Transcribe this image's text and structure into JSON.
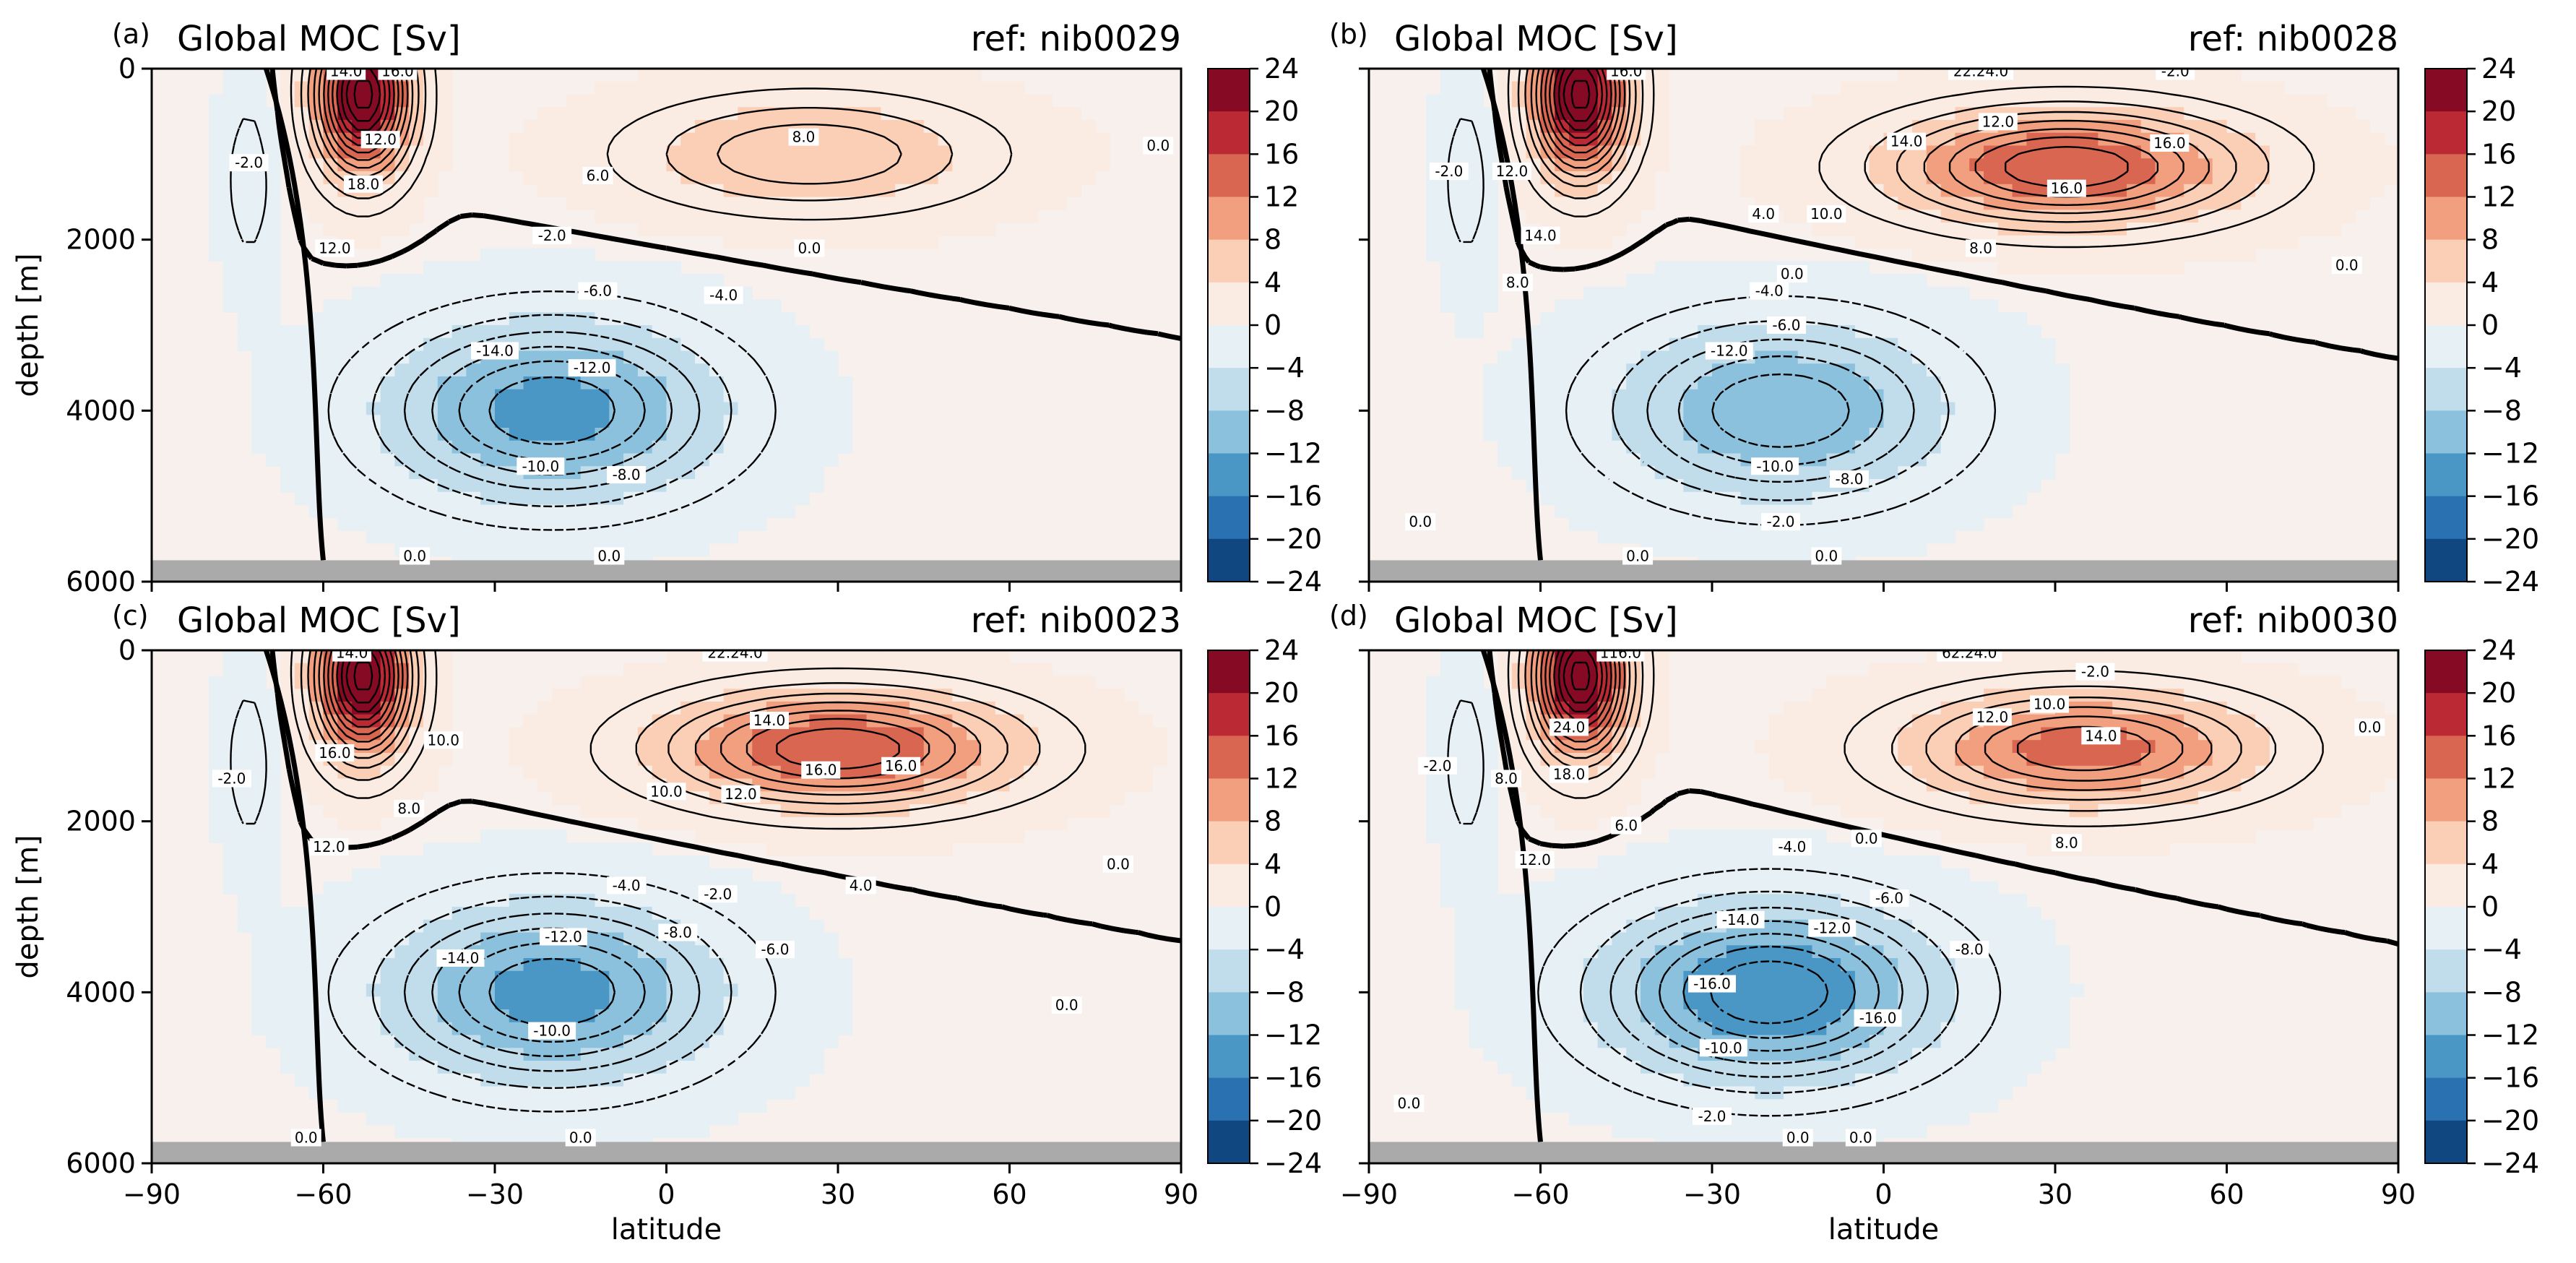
{
  "chart_data": [
    {
      "type": "contour",
      "panel_label": "(a)",
      "title": "Global MOC [Sv]",
      "ref": "ref: nib0029",
      "xlabel": "",
      "ylabel": "depth [m]",
      "xlim": [
        -90,
        90
      ],
      "ylim": [
        6000,
        0
      ],
      "xticks": [
        -90,
        -60,
        -30,
        0,
        30,
        60,
        90
      ],
      "yticks": [
        0,
        2000,
        4000,
        6000
      ],
      "show_xticklabels": false,
      "show_yticklabels": true,
      "colorbar": {
        "range": [
          -24,
          24
        ],
        "ticks": [
          24,
          20,
          16,
          12,
          8,
          4,
          0,
          -4,
          -8,
          -12,
          -16,
          -20,
          -24
        ],
        "cmap": "RdBu_r"
      },
      "features": {
        "upper_cell": {
          "center_lat": 25,
          "center_depth": 1000,
          "max": 8
        },
        "southern_cell": {
          "center_lat": -53,
          "center_depth": 300,
          "max": 24
        },
        "deep_cell": {
          "center_lat": -20,
          "center_depth": 4000,
          "min": -14
        }
      },
      "contour_labels": [
        {
          "text": "14.0",
          "lat": -56,
          "depth": 30
        },
        {
          "text": "16.0",
          "lat": -47,
          "depth": 30
        },
        {
          "text": "12.0",
          "lat": -50,
          "depth": 830
        },
        {
          "text": "18.0",
          "lat": -53,
          "depth": 1350
        },
        {
          "text": "12.0",
          "lat": -58,
          "depth": 2100
        },
        {
          "text": "-2.0",
          "lat": -73,
          "depth": 1100
        },
        {
          "text": "6.0",
          "lat": -12,
          "depth": 1250
        },
        {
          "text": "8.0",
          "lat": 24,
          "depth": 800
        },
        {
          "text": "0.0",
          "lat": 25,
          "depth": 2100
        },
        {
          "text": "-2.0",
          "lat": -20,
          "depth": 1950
        },
        {
          "text": "-6.0",
          "lat": -12,
          "depth": 2600
        },
        {
          "text": "-4.0",
          "lat": 10,
          "depth": 2650
        },
        {
          "text": "-14.0",
          "lat": -30,
          "depth": 3300
        },
        {
          "text": "-12.0",
          "lat": -13,
          "depth": 3500
        },
        {
          "text": "-10.0",
          "lat": -22,
          "depth": 4650
        },
        {
          "text": "-8.0",
          "lat": -7,
          "depth": 4750
        },
        {
          "text": "0.0",
          "lat": -44,
          "depth": 5700
        },
        {
          "text": "0.0",
          "lat": -10,
          "depth": 5700
        },
        {
          "text": "0.0",
          "lat": 86,
          "depth": 900
        }
      ]
    },
    {
      "type": "contour",
      "panel_label": "(b)",
      "title": "Global MOC [Sv]",
      "ref": "ref: nib0028",
      "xlabel": "",
      "ylabel": "",
      "xlim": [
        -90,
        90
      ],
      "ylim": [
        6000,
        0
      ],
      "xticks": [
        -90,
        -60,
        -30,
        0,
        30,
        60,
        90
      ],
      "yticks": [
        0,
        2000,
        4000,
        6000
      ],
      "show_xticklabels": false,
      "show_yticklabels": false,
      "colorbar": {
        "range": [
          -24,
          24
        ],
        "ticks": [
          24,
          20,
          16,
          12,
          8,
          4,
          0,
          -4,
          -8,
          -12,
          -16,
          -20,
          -24
        ],
        "cmap": "RdBu_r"
      },
      "features": {
        "upper_cell": {
          "center_lat": 32,
          "center_depth": 1150,
          "max": 16
        },
        "southern_cell": {
          "center_lat": -53,
          "center_depth": 300,
          "max": 24
        },
        "deep_cell": {
          "center_lat": -18,
          "center_depth": 4000,
          "min": -12
        }
      },
      "contour_labels": [
        {
          "text": "16.0",
          "lat": -45,
          "depth": 30
        },
        {
          "text": "22.24.0",
          "lat": 17,
          "depth": 30
        },
        {
          "text": "-2.0",
          "lat": 51,
          "depth": 30
        },
        {
          "text": "12.0",
          "lat": -65,
          "depth": 1200
        },
        {
          "text": "14.0",
          "lat": -60,
          "depth": 1950
        },
        {
          "text": "8.0",
          "lat": -64,
          "depth": 2500
        },
        {
          "text": "-2.0",
          "lat": -76,
          "depth": 1200
        },
        {
          "text": "12.0",
          "lat": 20,
          "depth": 620
        },
        {
          "text": "14.0",
          "lat": 4,
          "depth": 850
        },
        {
          "text": "16.0",
          "lat": 32,
          "depth": 1400
        },
        {
          "text": "16.0",
          "lat": 50,
          "depth": 870
        },
        {
          "text": "4.0",
          "lat": -21,
          "depth": 1700
        },
        {
          "text": "10.0",
          "lat": -10,
          "depth": 1700
        },
        {
          "text": "8.0",
          "lat": 17,
          "depth": 2100
        },
        {
          "text": "0.0",
          "lat": -16,
          "depth": 2400
        },
        {
          "text": "-4.0",
          "lat": -20,
          "depth": 2600
        },
        {
          "text": "-6.0",
          "lat": -17,
          "depth": 3000
        },
        {
          "text": "-12.0",
          "lat": -27,
          "depth": 3300
        },
        {
          "text": "-10.0",
          "lat": -19,
          "depth": 4650
        },
        {
          "text": "-8.0",
          "lat": -6,
          "depth": 4800
        },
        {
          "text": "-2.0",
          "lat": -18,
          "depth": 5300
        },
        {
          "text": "0.0",
          "lat": -81,
          "depth": 5300
        },
        {
          "text": "0.0",
          "lat": -43,
          "depth": 5700
        },
        {
          "text": "0.0",
          "lat": -10,
          "depth": 5700
        },
        {
          "text": "0.0",
          "lat": 81,
          "depth": 2300
        }
      ]
    },
    {
      "type": "contour",
      "panel_label": "(c)",
      "title": "Global MOC [Sv]",
      "ref": "ref: nib0023",
      "xlabel": "latitude",
      "ylabel": "depth [m]",
      "xlim": [
        -90,
        90
      ],
      "ylim": [
        6000,
        0
      ],
      "xticks": [
        -90,
        -60,
        -30,
        0,
        30,
        60,
        90
      ],
      "yticks": [
        0,
        2000,
        4000,
        6000
      ],
      "show_xticklabels": true,
      "show_yticklabels": true,
      "colorbar": {
        "range": [
          -24,
          24
        ],
        "ticks": [
          24,
          20,
          16,
          12,
          8,
          4,
          0,
          -4,
          -8,
          -12,
          -16,
          -20,
          -24
        ],
        "cmap": "RdBu_r"
      },
      "features": {
        "upper_cell": {
          "center_lat": 30,
          "center_depth": 1150,
          "max": 16
        },
        "southern_cell": {
          "center_lat": -53,
          "center_depth": 300,
          "max": 24
        },
        "deep_cell": {
          "center_lat": -20,
          "center_depth": 4000,
          "min": -14
        }
      },
      "contour_labels": [
        {
          "text": "14.0",
          "lat": -55,
          "depth": 30
        },
        {
          "text": "22.24.0",
          "lat": 12,
          "depth": 30
        },
        {
          "text": "16.0",
          "lat": -58,
          "depth": 1200
        },
        {
          "text": "10.0",
          "lat": -39,
          "depth": 1050
        },
        {
          "text": "8.0",
          "lat": -45,
          "depth": 1850
        },
        {
          "text": "12.0",
          "lat": -59,
          "depth": 2300
        },
        {
          "text": "-2.0",
          "lat": -76,
          "depth": 1500
        },
        {
          "text": "14.0",
          "lat": 18,
          "depth": 820
        },
        {
          "text": "16.0",
          "lat": 27,
          "depth": 1400
        },
        {
          "text": "16.0",
          "lat": 41,
          "depth": 1350
        },
        {
          "text": "10.0",
          "lat": 0,
          "depth": 1650
        },
        {
          "text": "12.0",
          "lat": 13,
          "depth": 1680
        },
        {
          "text": "4.0",
          "lat": 34,
          "depth": 2750
        },
        {
          "text": "-4.0",
          "lat": -7,
          "depth": 2750
        },
        {
          "text": "-2.0",
          "lat": 9,
          "depth": 2850
        },
        {
          "text": "-14.0",
          "lat": -36,
          "depth": 3600
        },
        {
          "text": "-12.0",
          "lat": -18,
          "depth": 3350
        },
        {
          "text": "-8.0",
          "lat": 2,
          "depth": 3300
        },
        {
          "text": "-6.0",
          "lat": 19,
          "depth": 3500
        },
        {
          "text": "-10.0",
          "lat": -20,
          "depth": 4450
        },
        {
          "text": "0.0",
          "lat": 70,
          "depth": 4150
        },
        {
          "text": "0.0",
          "lat": 79,
          "depth": 2500
        },
        {
          "text": "0.0",
          "lat": -63,
          "depth": 5700
        },
        {
          "text": "0.0",
          "lat": -15,
          "depth": 5700
        }
      ]
    },
    {
      "type": "contour",
      "panel_label": "(d)",
      "title": "Global MOC [Sv]",
      "ref": "ref: nib0030",
      "xlabel": "latitude",
      "ylabel": "",
      "xlim": [
        -90,
        90
      ],
      "ylim": [
        6000,
        0
      ],
      "xticks": [
        -90,
        -60,
        -30,
        0,
        30,
        60,
        90
      ],
      "yticks": [
        0,
        2000,
        4000,
        6000
      ],
      "show_xticklabels": true,
      "show_yticklabels": false,
      "colorbar": {
        "range": [
          -24,
          24
        ],
        "ticks": [
          24,
          20,
          16,
          12,
          8,
          4,
          0,
          -4,
          -8,
          -12,
          -16,
          -20,
          -24
        ],
        "cmap": "RdBu_r"
      },
      "features": {
        "upper_cell": {
          "center_lat": 35,
          "center_depth": 1150,
          "max": 14
        },
        "southern_cell": {
          "center_lat": -53,
          "center_depth": 300,
          "max": 24
        },
        "deep_cell": {
          "center_lat": -20,
          "center_depth": 4000,
          "min": -16
        }
      },
      "contour_labels": [
        {
          "text": "116.0",
          "lat": -46,
          "depth": 30
        },
        {
          "text": "62.24.0",
          "lat": 15,
          "depth": 30
        },
        {
          "text": "-2.0",
          "lat": 37,
          "depth": 250
        },
        {
          "text": "24.0",
          "lat": -55,
          "depth": 900
        },
        {
          "text": "18.0",
          "lat": -55,
          "depth": 1450
        },
        {
          "text": "8.0",
          "lat": -66,
          "depth": 1500
        },
        {
          "text": "12.0",
          "lat": -61,
          "depth": 2450
        },
        {
          "text": "6.0",
          "lat": -45,
          "depth": 2050
        },
        {
          "text": "-2.0",
          "lat": -78,
          "depth": 1350
        },
        {
          "text": "12.0",
          "lat": 19,
          "depth": 780
        },
        {
          "text": "10.0",
          "lat": 29,
          "depth": 630
        },
        {
          "text": "14.0",
          "lat": 38,
          "depth": 1000
        },
        {
          "text": "8.0",
          "lat": 32,
          "depth": 2250
        },
        {
          "text": "-4.0",
          "lat": -16,
          "depth": 2300
        },
        {
          "text": "0.0",
          "lat": -3,
          "depth": 2200
        },
        {
          "text": "-6.0",
          "lat": 1,
          "depth": 2900
        },
        {
          "text": "-14.0",
          "lat": -25,
          "depth": 3150
        },
        {
          "text": "-12.0",
          "lat": -9,
          "depth": 3250
        },
        {
          "text": "-8.0",
          "lat": 15,
          "depth": 3500
        },
        {
          "text": "-16.0",
          "lat": -30,
          "depth": 3900
        },
        {
          "text": "-16.0",
          "lat": -1,
          "depth": 4300
        },
        {
          "text": "-10.0",
          "lat": -28,
          "depth": 4650
        },
        {
          "text": "-2.0",
          "lat": -30,
          "depth": 5450
        },
        {
          "text": "0.0",
          "lat": -83,
          "depth": 5300
        },
        {
          "text": "0.0",
          "lat": -15,
          "depth": 5700
        },
        {
          "text": "0.0",
          "lat": -4,
          "depth": 5700
        },
        {
          "text": "0.0",
          "lat": 85,
          "depth": 900
        }
      ]
    }
  ]
}
